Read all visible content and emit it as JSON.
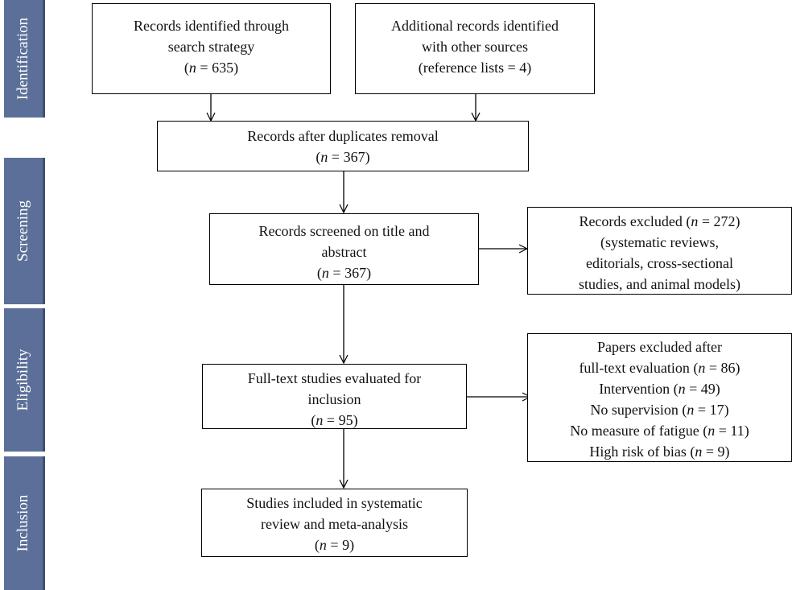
{
  "sidebar": [
    "Identification",
    "Screening",
    "Eligibility",
    "Inclusion"
  ],
  "boxes": {
    "records_search": [
      "Records identified through",
      "search strategy",
      "(n = 635)"
    ],
    "additional_records": [
      "Additional records identified",
      "with other sources",
      "(reference lists = 4)"
    ],
    "after_duplicates": [
      "Records after duplicates removal",
      "(n = 367)"
    ],
    "screened": [
      "Records screened on title and",
      "abstract",
      "(n = 367)"
    ],
    "excluded_screening": [
      "Records excluded (n = 272)",
      "(systematic reviews,",
      "editorials, cross-sectional",
      "studies, and animal models)"
    ],
    "fulltext": [
      "Full-text studies evaluated for",
      "inclusion",
      "(n = 95)"
    ],
    "excluded_fulltext": [
      "Papers excluded after",
      "full-text evaluation (n = 86)",
      "Intervention (n = 49)",
      "No supervision (n = 17)",
      "No measure of fatigue (n = 11)",
      "High risk of bias (n = 9)"
    ],
    "included": [
      "Studies included in systematic",
      "review and meta-analysis",
      "(n = 9)"
    ]
  }
}
